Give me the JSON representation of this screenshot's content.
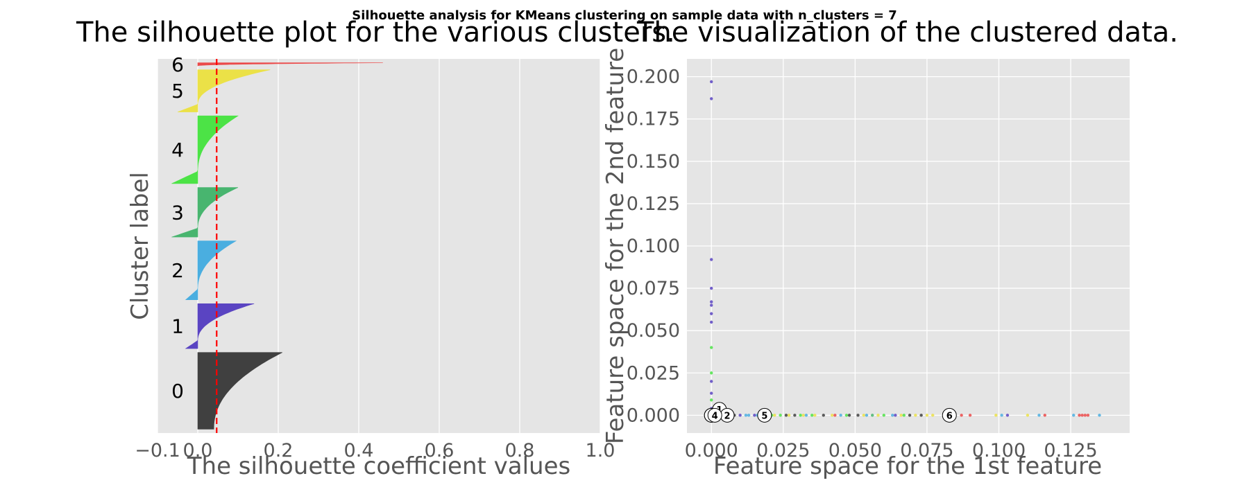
{
  "suptitle": "Silhouette analysis for KMeans clustering on sample data with n_clusters = 7",
  "chart_data": [
    {
      "type": "area",
      "title": "The silhouette plot for the various clusters.",
      "xlabel": "The silhouette coefficient values",
      "ylabel": "Cluster label",
      "xlim": [
        -0.1,
        1.0
      ],
      "xticks": [
        -0.1,
        0.0,
        0.2,
        0.4,
        0.6,
        0.8,
        1.0
      ],
      "xtick_labels": [
        "−0.1",
        "0.0",
        "0.2",
        "0.4",
        "0.6",
        "0.8",
        "1.0"
      ],
      "grid": true,
      "average_silhouette": 0.047,
      "clusters": [
        {
          "label": "0",
          "color": "#404040",
          "size": 198,
          "max": 0.21,
          "min": 0.04,
          "neg_min": 0.0
        },
        {
          "label": "1",
          "color": "#5a44c2",
          "size": 116,
          "max": 0.14,
          "min": 0.0,
          "neg_min": -0.03
        },
        {
          "label": "2",
          "color": "#4aaee0",
          "size": 152,
          "max": 0.095,
          "min": 0.0,
          "neg_min": -0.03
        },
        {
          "label": "3",
          "color": "#48b56f",
          "size": 128,
          "max": 0.1,
          "min": 0.0,
          "neg_min": -0.065
        },
        {
          "label": "4",
          "color": "#4ce346",
          "size": 175,
          "max": 0.1,
          "min": 0.0,
          "neg_min": -0.065
        },
        {
          "label": "5",
          "color": "#ebe147",
          "size": 109,
          "max": 0.18,
          "min": 0.0,
          "neg_min": -0.05
        },
        {
          "label": "6",
          "color": "#eb4a4a",
          "size": 8,
          "max": 0.46,
          "min": 0.0,
          "neg_min": 0.0
        }
      ]
    },
    {
      "type": "scatter",
      "title": "The visualization of the clustered data.",
      "xlabel": "Feature space for the 1st feature",
      "ylabel": "Feature space for the 2nd feature",
      "xlim": [
        -0.0085,
        0.1455
      ],
      "ylim": [
        -0.0105,
        0.2105
      ],
      "xticks": [
        0.0,
        0.025,
        0.05,
        0.075,
        0.1,
        0.125
      ],
      "xtick_labels": [
        "0.000",
        "0.025",
        "0.050",
        "0.075",
        "0.100",
        "0.125"
      ],
      "yticks": [
        0.0,
        0.025,
        0.05,
        0.075,
        0.1,
        0.125,
        0.15,
        0.175,
        0.2
      ],
      "ytick_labels": [
        "0.000",
        "0.025",
        "0.050",
        "0.075",
        "0.100",
        "0.125",
        "0.150",
        "0.175",
        "0.200"
      ],
      "grid": true,
      "points": [
        {
          "x": 0.0,
          "y": 0.197,
          "c": "#5a44c2"
        },
        {
          "x": 0.0,
          "y": 0.187,
          "c": "#5a44c2"
        },
        {
          "x": 0.0,
          "y": 0.092,
          "c": "#5a44c2"
        },
        {
          "x": 0.0,
          "y": 0.075,
          "c": "#5a44c2"
        },
        {
          "x": 0.0,
          "y": 0.067,
          "c": "#5a44c2"
        },
        {
          "x": 0.0,
          "y": 0.065,
          "c": "#5a44c2"
        },
        {
          "x": 0.0,
          "y": 0.06,
          "c": "#5a44c2"
        },
        {
          "x": 0.0,
          "y": 0.055,
          "c": "#5a44c2"
        },
        {
          "x": 0.0,
          "y": 0.04,
          "c": "#4ce346"
        },
        {
          "x": 0.0,
          "y": 0.025,
          "c": "#4ce346"
        },
        {
          "x": 0.0,
          "y": 0.02,
          "c": "#5a44c2"
        },
        {
          "x": 0.0,
          "y": 0.013,
          "c": "#5a44c2"
        },
        {
          "x": 0.0,
          "y": 0.009,
          "c": "#4ce346"
        },
        {
          "x": 0.0,
          "y": 0.004,
          "c": "#5a44c2"
        },
        {
          "x": 0.003,
          "y": 0.0,
          "c": "#4aaee0"
        },
        {
          "x": 0.006,
          "y": 0.0,
          "c": "#4aaee0"
        },
        {
          "x": 0.008,
          "y": 0.0,
          "c": "#404040"
        },
        {
          "x": 0.01,
          "y": 0.0,
          "c": "#5a44c2"
        },
        {
          "x": 0.012,
          "y": 0.0,
          "c": "#4aaee0"
        },
        {
          "x": 0.013,
          "y": 0.0,
          "c": "#4aaee0"
        },
        {
          "x": 0.015,
          "y": 0.0,
          "c": "#5a44c2"
        },
        {
          "x": 0.016,
          "y": 0.0,
          "c": "#4aaee0"
        },
        {
          "x": 0.017,
          "y": 0.0,
          "c": "#404040"
        },
        {
          "x": 0.021,
          "y": 0.0,
          "c": "#4ce346"
        },
        {
          "x": 0.022,
          "y": 0.0,
          "c": "#ebe147"
        },
        {
          "x": 0.024,
          "y": 0.0,
          "c": "#4ce346"
        },
        {
          "x": 0.026,
          "y": 0.0,
          "c": "#404040"
        },
        {
          "x": 0.027,
          "y": 0.0,
          "c": "#ebe147"
        },
        {
          "x": 0.029,
          "y": 0.0,
          "c": "#404040"
        },
        {
          "x": 0.031,
          "y": 0.0,
          "c": "#4ce346"
        },
        {
          "x": 0.032,
          "y": 0.0,
          "c": "#ebe147"
        },
        {
          "x": 0.033,
          "y": 0.0,
          "c": "#4aaee0"
        },
        {
          "x": 0.035,
          "y": 0.0,
          "c": "#4ce346"
        },
        {
          "x": 0.036,
          "y": 0.0,
          "c": "#ebe147"
        },
        {
          "x": 0.039,
          "y": 0.0,
          "c": "#404040"
        },
        {
          "x": 0.042,
          "y": 0.0,
          "c": "#ebe147"
        },
        {
          "x": 0.043,
          "y": 0.0,
          "c": "#eb4a4a"
        },
        {
          "x": 0.045,
          "y": 0.0,
          "c": "#4aaee0"
        },
        {
          "x": 0.047,
          "y": 0.0,
          "c": "#4ce346"
        },
        {
          "x": 0.048,
          "y": 0.0,
          "c": "#404040"
        },
        {
          "x": 0.051,
          "y": 0.0,
          "c": "#404040"
        },
        {
          "x": 0.053,
          "y": 0.0,
          "c": "#ebe147"
        },
        {
          "x": 0.054,
          "y": 0.0,
          "c": "#4aaee0"
        },
        {
          "x": 0.056,
          "y": 0.0,
          "c": "#48b56f"
        },
        {
          "x": 0.058,
          "y": 0.0,
          "c": "#ebe147"
        },
        {
          "x": 0.06,
          "y": 0.0,
          "c": "#4ce346"
        },
        {
          "x": 0.063,
          "y": 0.0,
          "c": "#4aaee0"
        },
        {
          "x": 0.064,
          "y": 0.0,
          "c": "#5a44c2"
        },
        {
          "x": 0.066,
          "y": 0.0,
          "c": "#ebe147"
        },
        {
          "x": 0.067,
          "y": 0.0,
          "c": "#4ce346"
        },
        {
          "x": 0.069,
          "y": 0.0,
          "c": "#404040"
        },
        {
          "x": 0.071,
          "y": 0.0,
          "c": "#ebe147"
        },
        {
          "x": 0.073,
          "y": 0.0,
          "c": "#404040"
        },
        {
          "x": 0.075,
          "y": 0.0,
          "c": "#ebe147"
        },
        {
          "x": 0.077,
          "y": 0.0,
          "c": "#ebe147"
        },
        {
          "x": 0.087,
          "y": 0.0,
          "c": "#eb4a4a"
        },
        {
          "x": 0.09,
          "y": 0.0,
          "c": "#eb4a4a"
        },
        {
          "x": 0.099,
          "y": 0.0,
          "c": "#ebe147"
        },
        {
          "x": 0.101,
          "y": 0.0,
          "c": "#4aaee0"
        },
        {
          "x": 0.103,
          "y": 0.0,
          "c": "#5a44c2"
        },
        {
          "x": 0.11,
          "y": 0.0,
          "c": "#ebe147"
        },
        {
          "x": 0.114,
          "y": 0.0,
          "c": "#4aaee0"
        },
        {
          "x": 0.116,
          "y": 0.0,
          "c": "#eb4a4a"
        },
        {
          "x": 0.126,
          "y": 0.0,
          "c": "#4aaee0"
        },
        {
          "x": 0.128,
          "y": 0.0,
          "c": "#eb4a4a"
        },
        {
          "x": 0.129,
          "y": 0.0,
          "c": "#eb4a4a"
        },
        {
          "x": 0.13,
          "y": 0.0,
          "c": "#eb4a4a"
        },
        {
          "x": 0.131,
          "y": 0.0,
          "c": "#eb4a4a"
        },
        {
          "x": 0.135,
          "y": 0.0,
          "c": "#4aaee0"
        }
      ],
      "centers": [
        {
          "label": "0",
          "x": 0.0,
          "y": 0.0
        },
        {
          "label": "1",
          "x": 0.0028,
          "y": 0.0035
        },
        {
          "label": "2",
          "x": 0.0055,
          "y": 0.0
        },
        {
          "label": "3",
          "x": 0.0,
          "y": 0.0
        },
        {
          "label": "4",
          "x": 0.0012,
          "y": 0.0
        },
        {
          "label": "5",
          "x": 0.0185,
          "y": 0.0
        },
        {
          "label": "6",
          "x": 0.0828,
          "y": 0.0
        }
      ]
    }
  ]
}
